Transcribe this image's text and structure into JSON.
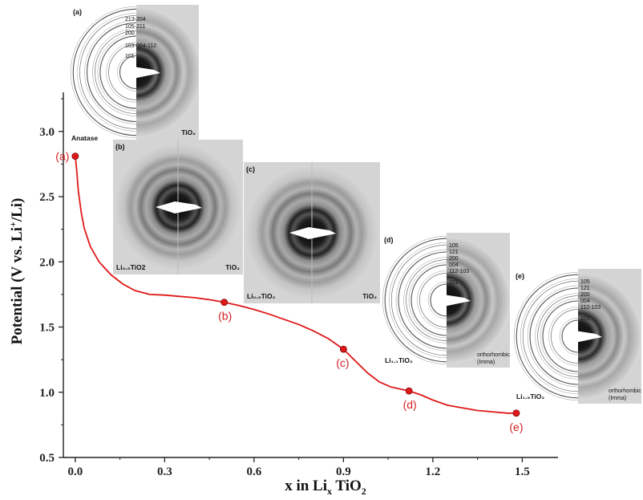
{
  "chart_data": {
    "type": "line",
    "xlabel_main": "x in Li",
    "xlabel_sub": "x",
    "xlabel_tail": " TiO",
    "xlabel_sub2": "2",
    "ylabel_main": "Potential (V vs. Li",
    "ylabel_sup": "+",
    "ylabel_tail": "/Li)",
    "xlim": [
      -0.04,
      1.62
    ],
    "ylim": [
      0.5,
      3.3
    ],
    "xticks": [
      "0.0",
      "0.3",
      "0.6",
      "0.9",
      "1.2",
      "1.5"
    ],
    "xtick_values": [
      0.0,
      0.3,
      0.6,
      0.9,
      1.2,
      1.5
    ],
    "yticks": [
      "0.5",
      "1.0",
      "1.5",
      "2.0",
      "2.5",
      "3.0"
    ],
    "ytick_values": [
      0.5,
      1.0,
      1.5,
      2.0,
      2.5,
      3.0
    ],
    "color": "#e01818",
    "curve": {
      "x": [
        0.0,
        0.005,
        0.01,
        0.02,
        0.03,
        0.05,
        0.08,
        0.12,
        0.16,
        0.2,
        0.25,
        0.3,
        0.35,
        0.4,
        0.45,
        0.5,
        0.55,
        0.6,
        0.65,
        0.7,
        0.75,
        0.8,
        0.85,
        0.9,
        0.94,
        0.98,
        1.02,
        1.06,
        1.1,
        1.12,
        1.16,
        1.2,
        1.25,
        1.3,
        1.35,
        1.4,
        1.45,
        1.48
      ],
      "y": [
        2.81,
        2.7,
        2.55,
        2.38,
        2.26,
        2.12,
        2.0,
        1.9,
        1.83,
        1.78,
        1.75,
        1.745,
        1.735,
        1.725,
        1.71,
        1.69,
        1.665,
        1.635,
        1.6,
        1.56,
        1.52,
        1.47,
        1.41,
        1.33,
        1.24,
        1.15,
        1.08,
        1.04,
        1.02,
        1.01,
        0.98,
        0.94,
        0.9,
        0.88,
        0.86,
        0.85,
        0.84,
        0.84
      ]
    },
    "markers": [
      {
        "label": "(a)",
        "x": 0.0,
        "y": 2.81
      },
      {
        "label": "(b)",
        "x": 0.5,
        "y": 1.69
      },
      {
        "label": "(c)",
        "x": 0.9,
        "y": 1.33
      },
      {
        "label": "(d)",
        "x": 1.12,
        "y": 1.01
      },
      {
        "label": "(e)",
        "x": 1.48,
        "y": 0.84
      }
    ]
  },
  "insets": [
    {
      "letter": "(a)",
      "left_label": "",
      "right_label": "TiO₂",
      "top_label": "Anatase",
      "ring_labels": [
        "213-204",
        "105-211",
        "200",
        "103-004-112",
        "101"
      ],
      "phase": []
    },
    {
      "letter": "(b)",
      "left_label": "Li₀.₅TiO2",
      "right_label": "TiO₂",
      "top_label": "",
      "ring_labels": [],
      "phase": []
    },
    {
      "letter": "(c)",
      "left_label": "Li₀.₉TiO₂",
      "right_label": "TiO₂",
      "top_label": "",
      "ring_labels": [],
      "phase": []
    },
    {
      "letter": "(d)",
      "left_label": "Li₁.₁TiO₂",
      "right_label": "",
      "top_label": "",
      "ring_labels": [
        "105",
        "121",
        "200",
        "004",
        "112-103",
        "101"
      ],
      "phase": [
        "orthorhombic",
        "(Imma)"
      ]
    },
    {
      "letter": "(e)",
      "left_label": "Li₁.₅TiO₂",
      "right_label": "",
      "top_label": "",
      "ring_labels": [
        "105",
        "121",
        "200",
        "004",
        "112-103",
        "101"
      ],
      "phase": [
        "orthorhombic",
        "(Imma)"
      ]
    }
  ]
}
